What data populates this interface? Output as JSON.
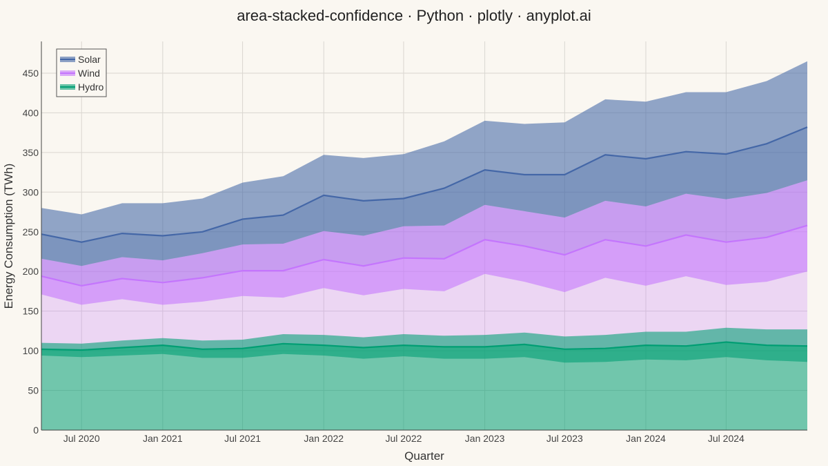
{
  "chart_data": {
    "type": "area",
    "title": "area-stacked-confidence · Python · plotly · anyplot.ai",
    "xlabel": "Quarter",
    "ylabel": "Energy Consumption (TWh)",
    "ylim": [
      0,
      490
    ],
    "xlim": [
      "2020-04-01",
      "2025-01-01"
    ],
    "y_ticks": [
      0,
      50,
      100,
      150,
      200,
      250,
      300,
      350,
      400,
      450
    ],
    "x_ticks": [
      {
        "date": "2020-07-01",
        "label": "Jul 2020"
      },
      {
        "date": "2021-01-01",
        "label": "Jan 2021"
      },
      {
        "date": "2021-07-01",
        "label": "Jul 2021"
      },
      {
        "date": "2022-01-01",
        "label": "Jan 2022"
      },
      {
        "date": "2022-07-01",
        "label": "Jul 2022"
      },
      {
        "date": "2023-01-01",
        "label": "Jan 2023"
      },
      {
        "date": "2023-07-01",
        "label": "Jul 2023"
      },
      {
        "date": "2024-01-01",
        "label": "Jan 2024"
      },
      {
        "date": "2024-07-01",
        "label": "Jul 2024"
      }
    ],
    "grid": true,
    "legend_position": "top-left",
    "x": [
      "2020-04-01",
      "2020-07-01",
      "2020-10-01",
      "2021-01-01",
      "2021-04-01",
      "2021-07-01",
      "2021-10-01",
      "2022-01-01",
      "2022-04-01",
      "2022-07-01",
      "2022-10-01",
      "2023-01-01",
      "2023-04-01",
      "2023-07-01",
      "2023-10-01",
      "2024-01-01",
      "2024-04-01",
      "2024-07-01",
      "2024-10-01",
      "2025-01-01"
    ],
    "series": [
      {
        "name": "Hydro",
        "color": "#009E73",
        "cumulative": [
          102,
          101,
          104,
          107,
          102,
          103,
          109,
          107,
          104,
          107,
          105,
          105,
          108,
          102,
          103,
          107,
          106,
          111,
          107,
          106
        ],
        "lower": [
          94,
          92,
          94,
          96,
          91,
          91,
          96,
          94,
          90,
          93,
          90,
          90,
          92,
          85,
          86,
          89,
          88,
          92,
          88,
          86
        ],
        "upper": [
          110,
          109,
          113,
          116,
          113,
          114,
          121,
          120,
          117,
          121,
          119,
          120,
          123,
          118,
          120,
          124,
          124,
          129,
          127,
          127
        ]
      },
      {
        "name": "Wind",
        "color": "#C475FD",
        "cumulative": [
          194,
          182,
          191,
          186,
          192,
          201,
          201,
          215,
          207,
          217,
          216,
          240,
          232,
          221,
          240,
          232,
          246,
          237,
          243,
          258
        ],
        "lower": [
          171,
          158,
          165,
          158,
          162,
          169,
          167,
          179,
          170,
          178,
          175,
          197,
          187,
          174,
          192,
          182,
          194,
          183,
          187,
          200
        ],
        "upper": [
          216,
          207,
          218,
          214,
          223,
          234,
          235,
          251,
          245,
          257,
          258,
          284,
          276,
          268,
          289,
          282,
          298,
          291,
          299,
          315
        ]
      },
      {
        "name": "Solar",
        "color": "#4467A7",
        "cumulative": [
          247,
          237,
          248,
          245,
          250,
          266,
          271,
          296,
          289,
          292,
          305,
          328,
          322,
          322,
          347,
          342,
          351,
          348,
          361,
          382
        ],
        "lower": [
          216,
          207,
          218,
          214,
          223,
          234,
          235,
          251,
          245,
          257,
          258,
          284,
          276,
          268,
          289,
          282,
          298,
          291,
          299,
          315
        ],
        "upper": [
          280,
          272,
          286,
          286,
          292,
          312,
          320,
          347,
          343,
          348,
          364,
          390,
          386,
          388,
          417,
          414,
          426,
          426,
          440,
          465
        ]
      }
    ],
    "legend_order": [
      "Solar",
      "Wind",
      "Hydro"
    ]
  }
}
